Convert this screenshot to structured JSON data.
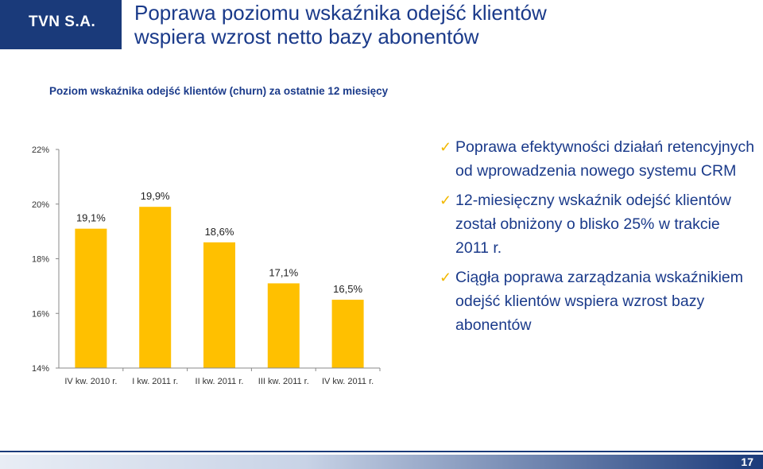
{
  "header": {
    "logo": "TVN S.A.",
    "title_line1": "Poprawa poziomu wskaźnika odejść klientów",
    "title_line2": "wspiera wzrost netto bazy abonentów"
  },
  "chart_data": {
    "type": "bar",
    "title": "Poziom wskaźnika odejść klientów (churn) za ostatnie 12 miesięcy",
    "categories": [
      "IV kw. 2010 r.",
      "I kw. 2011 r.",
      "II kw. 2011 r.",
      "III kw. 2011 r.",
      "IV kw. 2011 r."
    ],
    "values": [
      19.1,
      19.9,
      18.6,
      17.1,
      16.5
    ],
    "data_labels": [
      "19,1%",
      "19,9%",
      "18,6%",
      "17,1%",
      "16,5%"
    ],
    "y_ticks": [
      "14%",
      "16%",
      "18%",
      "20%",
      "22%"
    ],
    "ylim": [
      14,
      22
    ],
    "bar_color": "#ffc000",
    "grid": false
  },
  "bullets": [
    "Poprawa efektywności działań retencyjnych od wprowadzenia nowego systemu CRM",
    "12-miesięczny wskaźnik odejść klientów został obniżony o blisko 25% w trakcie 2011 r.",
    "Ciągła poprawa zarządzania wskaźnikiem odejść klientów wspiera wzrost bazy abonentów"
  ],
  "footer": {
    "page_number": "17"
  },
  "colors": {
    "brand": "#1a3a7a",
    "accent": "#ffc000",
    "text": "#1a3a8a"
  },
  "icons": {
    "bullet": "check-icon"
  }
}
